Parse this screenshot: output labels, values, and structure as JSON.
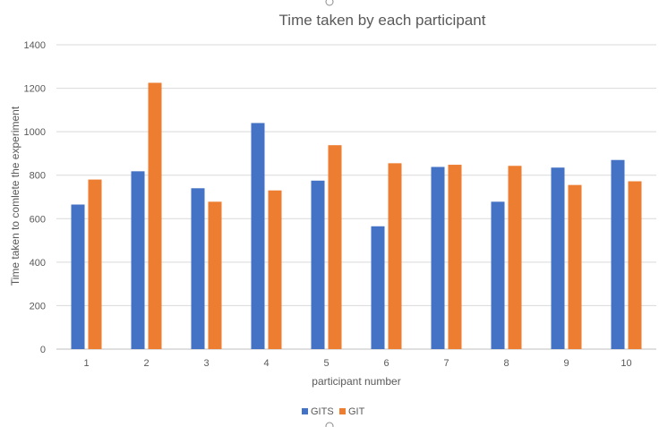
{
  "chart_data": {
    "type": "bar",
    "title": "Time taken by each participant",
    "xlabel": "participant number",
    "ylabel": "Time taken to comlete the experiment",
    "categories": [
      "1",
      "2",
      "3",
      "4",
      "5",
      "6",
      "7",
      "8",
      "9",
      "10"
    ],
    "series": [
      {
        "name": "GITS",
        "color": "#4472c4",
        "values": [
          665,
          818,
          740,
          1040,
          775,
          565,
          838,
          678,
          835,
          870
        ]
      },
      {
        "name": "GIT",
        "color": "#ed7d31",
        "values": [
          780,
          1225,
          678,
          730,
          938,
          855,
          848,
          843,
          755,
          772
        ]
      }
    ],
    "ylim": [
      0,
      1400
    ],
    "yticks": [
      0,
      200,
      400,
      600,
      800,
      1000,
      1200,
      1400
    ],
    "grid": true,
    "legend_position": "bottom"
  }
}
